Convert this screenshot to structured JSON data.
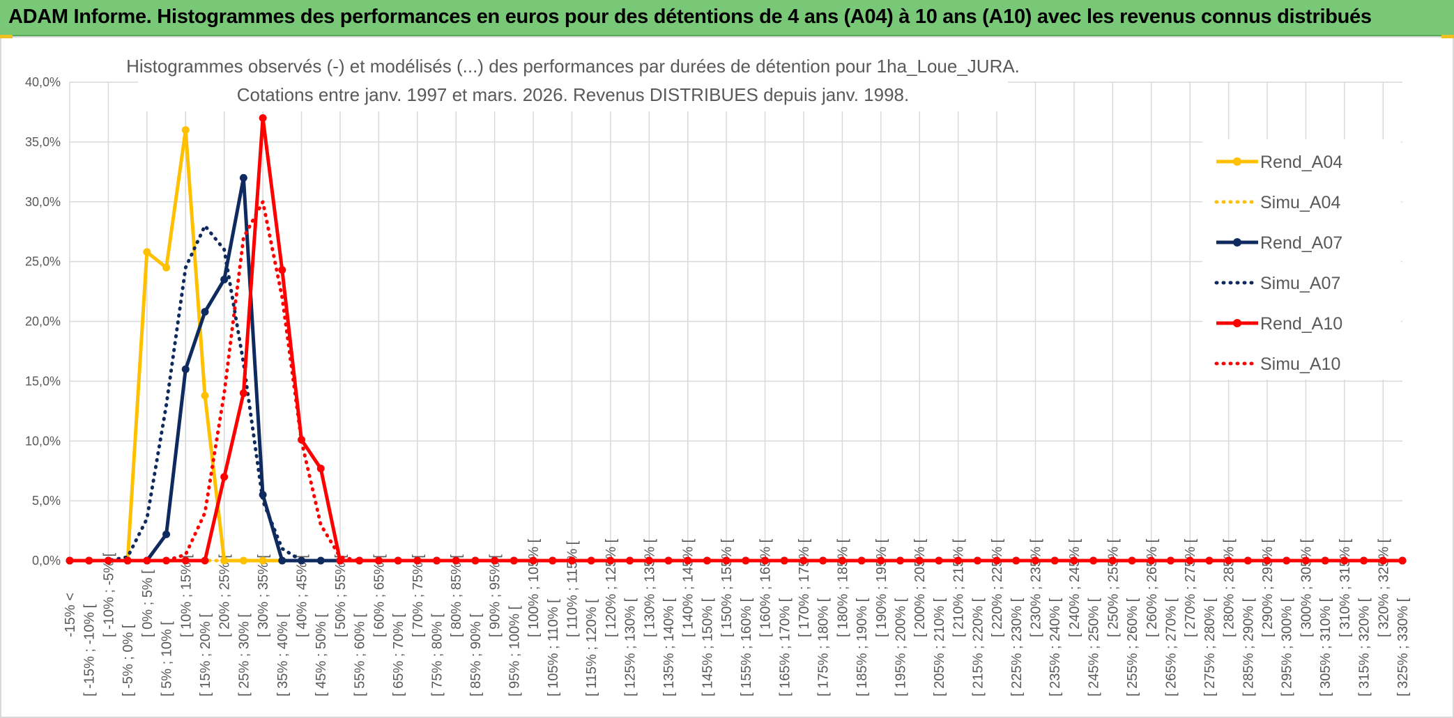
{
  "banner": {
    "title": "ADAM Informe. Histogrammes des performances en euros pour des détentions de 4 ans (A04) à 10 ans (A10) avec les revenus connus distribués"
  },
  "colors": {
    "banner": "#78c878",
    "A04": "#ffc000",
    "A07": "#0e2a5e",
    "A10": "#ff0000",
    "grid": "#d9d9d9",
    "text": "#595959"
  },
  "chart_data": {
    "type": "line",
    "title": "Histogrammes observés (-) et modélisés (...) des performances par durées de détention pour 1ha_Loue_JURA.",
    "subtitle": "Cotations entre janv. 1997 et mars. 2026. Revenus DISTRIBUES depuis janv. 1998.",
    "xlabel": "",
    "ylabel": "",
    "ylim": [
      0,
      40
    ],
    "y_ticks": [
      "0,0%",
      "5,0%",
      "10,0%",
      "15,0%",
      "20,0%",
      "25,0%",
      "30,0%",
      "35,0%",
      "40,0%"
    ],
    "grid": true,
    "legend_position": "right",
    "categories": [
      "-15% <",
      "[ -15% ; -10% [",
      "[ -10% ; -5% [",
      "[ -5% ; 0% [",
      "[ 0% ; 5% [",
      "[ 5% ; 10% [",
      "[ 10% ; 15% [",
      "[ 15% ; 20% [",
      "[ 20% ; 25% [",
      "[ 25% ; 30% [",
      "[ 30% ; 35% [",
      "[ 35% ; 40% [",
      "[ 40% ; 45% [",
      "[ 45% ; 50% [",
      "[ 50% ; 55% [",
      "[ 55% ; 60% [",
      "[ 60% ; 65% [",
      "[ 65% ; 70% [",
      "[ 70% ; 75% [",
      "[ 75% ; 80% [",
      "[ 80% ; 85% [",
      "[ 85% ; 90% [",
      "[ 90% ; 95% [",
      "[ 95% ; 100% [",
      "[ 100% ; 105% [",
      "[ 105% ; 110% [",
      "[ 110% ; 115% [",
      "[ 115% ; 120% [",
      "[ 120% ; 125% [",
      "[ 125% ; 130% [",
      "[ 130% ; 135% [",
      "[ 135% ; 140% [",
      "[ 140% ; 145% [",
      "[ 145% ; 150% [",
      "[ 150% ; 155% [",
      "[ 155% ; 160% [",
      "[ 160% ; 165% [",
      "[ 165% ; 170% [",
      "[ 170% ; 175% [",
      "[ 175% ; 180% [",
      "[ 180% ; 185% [",
      "[ 185% ; 190% [",
      "[ 190% ; 195% [",
      "[ 195% ; 200% [",
      "[ 200% ; 205% [",
      "[ 205% ; 210% [",
      "[ 210% ; 215% [",
      "[ 215% ; 220% [",
      "[ 220% ; 225% [",
      "[ 225% ; 230% [",
      "[ 230% ; 235% [",
      "[ 235% ; 240% [",
      "[ 240% ; 245% [",
      "[ 245% ; 250% [",
      "[ 250% ; 255% [",
      "[ 255% ; 260% [",
      "[ 260% ; 265% [",
      "[ 265% ; 270% [",
      "[ 270% ; 275% [",
      "[ 275% ; 280% [",
      "[ 280% ; 285% [",
      "[ 285% ; 290% [",
      "[ 290% ; 295% [",
      "[ 295% ; 300% [",
      "[ 300% ; 305% [",
      "[ 305% ; 310% [",
      "[ 310% ; 315% [",
      "[ 315% ; 320% [",
      "[ 320% ; 325% [",
      "[ 325% ; 330% ["
    ],
    "series": [
      {
        "name": "Rend_A04",
        "style": "solid",
        "markers": true,
        "color": "#ffc000",
        "values": [
          0,
          0,
          0,
          0,
          25.8,
          24.5,
          36.0,
          13.8,
          0,
          0,
          0,
          0,
          0,
          0,
          0,
          0,
          0,
          0,
          0,
          0,
          0,
          0,
          0,
          0,
          0,
          0,
          0,
          0,
          0,
          0,
          0,
          0,
          0,
          0,
          0,
          0,
          0,
          0,
          0,
          0,
          0,
          0,
          0,
          0,
          0,
          0,
          0,
          0,
          0,
          0,
          0,
          0,
          0,
          0,
          0,
          0,
          0,
          0,
          0,
          0,
          0,
          0,
          0,
          0,
          0,
          0,
          0,
          0,
          0,
          0
        ]
      },
      {
        "name": "Simu_A04",
        "style": "dotted",
        "markers": false,
        "color": "#ffc000",
        "values": [
          0,
          0,
          0,
          0,
          0,
          0,
          0,
          0,
          0,
          0,
          0,
          0,
          0,
          0,
          0,
          0,
          0,
          0,
          0,
          0,
          0,
          0,
          0,
          0,
          0,
          0,
          0,
          0,
          0,
          0,
          0,
          0,
          0,
          0,
          0,
          0,
          0,
          0,
          0,
          0,
          0,
          0,
          0,
          0,
          0,
          0,
          0,
          0,
          0,
          0,
          0,
          0,
          0,
          0,
          0,
          0,
          0,
          0,
          0,
          0,
          0,
          0,
          0,
          0,
          0,
          0,
          0,
          0,
          0,
          0
        ]
      },
      {
        "name": "Rend_A07",
        "style": "solid",
        "markers": true,
        "color": "#0e2a5e",
        "values": [
          0,
          0,
          0,
          0,
          0,
          2.2,
          16.0,
          20.8,
          23.5,
          32.0,
          5.5,
          0,
          0,
          0,
          0,
          0,
          0,
          0,
          0,
          0,
          0,
          0,
          0,
          0,
          0,
          0,
          0,
          0,
          0,
          0,
          0,
          0,
          0,
          0,
          0,
          0,
          0,
          0,
          0,
          0,
          0,
          0,
          0,
          0,
          0,
          0,
          0,
          0,
          0,
          0,
          0,
          0,
          0,
          0,
          0,
          0,
          0,
          0,
          0,
          0,
          0,
          0,
          0,
          0,
          0,
          0,
          0,
          0,
          0,
          0
        ]
      },
      {
        "name": "Simu_A07",
        "style": "dotted",
        "markers": false,
        "color": "#0e2a5e",
        "values": [
          0,
          0,
          0,
          0.3,
          3.5,
          13.0,
          24.5,
          28.0,
          26.0,
          16.5,
          5.0,
          1.0,
          0,
          0,
          0,
          0,
          0,
          0,
          0,
          0,
          0,
          0,
          0,
          0,
          0,
          0,
          0,
          0,
          0,
          0,
          0,
          0,
          0,
          0,
          0,
          0,
          0,
          0,
          0,
          0,
          0,
          0,
          0,
          0,
          0,
          0,
          0,
          0,
          0,
          0,
          0,
          0,
          0,
          0,
          0,
          0,
          0,
          0,
          0,
          0,
          0,
          0,
          0,
          0,
          0,
          0,
          0,
          0,
          0,
          0
        ]
      },
      {
        "name": "Rend_A10",
        "style": "solid",
        "markers": true,
        "color": "#ff0000",
        "values": [
          0,
          0,
          0,
          0,
          0,
          0,
          0,
          0,
          7.0,
          14.0,
          37.0,
          24.3,
          10.1,
          7.7,
          0,
          0,
          0,
          0,
          0,
          0,
          0,
          0,
          0,
          0,
          0,
          0,
          0,
          0,
          0,
          0,
          0,
          0,
          0,
          0,
          0,
          0,
          0,
          0,
          0,
          0,
          0,
          0,
          0,
          0,
          0,
          0,
          0,
          0,
          0,
          0,
          0,
          0,
          0,
          0,
          0,
          0,
          0,
          0,
          0,
          0,
          0,
          0,
          0,
          0,
          0,
          0,
          0,
          0,
          0,
          0
        ]
      },
      {
        "name": "Simu_A10",
        "style": "dotted",
        "markers": false,
        "color": "#ff0000",
        "values": [
          0,
          0,
          0,
          0,
          0,
          0,
          0.5,
          4.0,
          14.0,
          27.0,
          30.0,
          22.0,
          10.0,
          3.0,
          0.3,
          0,
          0,
          0,
          0,
          0,
          0,
          0,
          0,
          0,
          0,
          0,
          0,
          0,
          0,
          0,
          0,
          0,
          0,
          0,
          0,
          0,
          0,
          0,
          0,
          0,
          0,
          0,
          0,
          0,
          0,
          0,
          0,
          0,
          0,
          0,
          0,
          0,
          0,
          0,
          0,
          0,
          0,
          0,
          0,
          0,
          0,
          0,
          0,
          0,
          0,
          0,
          0,
          0,
          0,
          0
        ]
      }
    ]
  }
}
